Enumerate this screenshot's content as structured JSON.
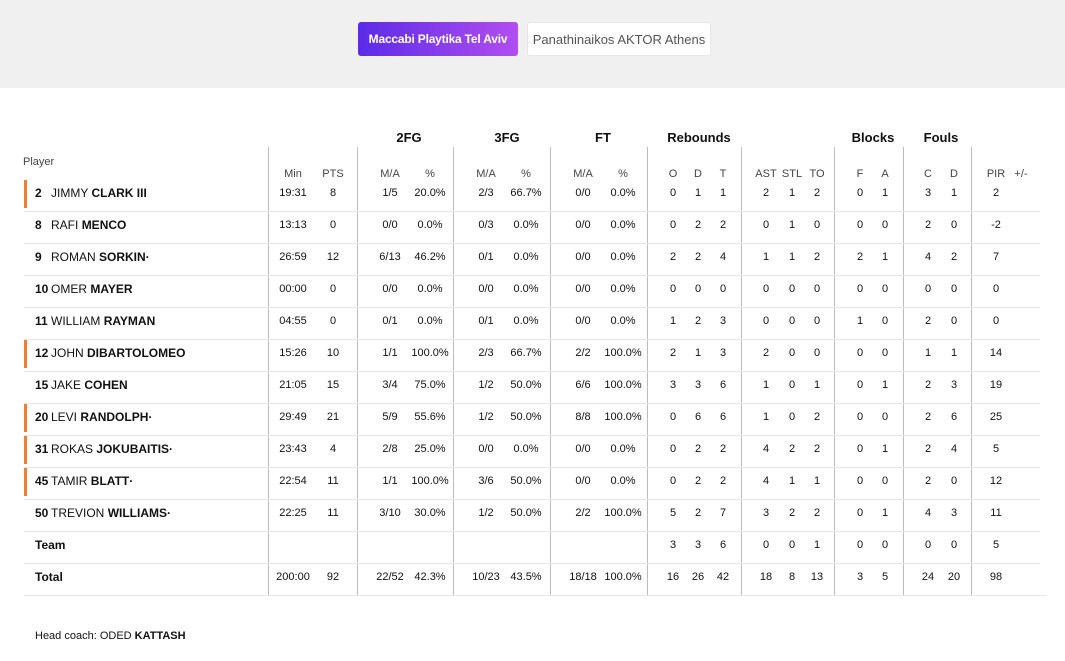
{
  "tabs": [
    {
      "label": "Maccabi Playtika Tel Aviv",
      "active": true
    },
    {
      "label": "Panathinaikos AKTOR Athens",
      "active": false
    }
  ],
  "group_headers": [
    "2FG",
    "3FG",
    "FT",
    "Rebounds",
    "Blocks",
    "Fouls"
  ],
  "column_headers": [
    "Min",
    "PTS",
    "M/A",
    "%",
    "M/A",
    "%",
    "M/A",
    "%",
    "O",
    "D",
    "T",
    "AST",
    "STL",
    "TO",
    "F",
    "A",
    "C",
    "D",
    "PIR",
    "+/-"
  ],
  "player_header": "Player",
  "accent_color": "#f47b38",
  "players": [
    {
      "num": "2",
      "first": "JIMMY",
      "last": "CLARK III",
      "starter": true,
      "stats": [
        "19:31",
        "8",
        "1/5",
        "20.0%",
        "2/3",
        "66.7%",
        "0/0",
        "0.0%",
        "0",
        "1",
        "1",
        "2",
        "1",
        "2",
        "0",
        "1",
        "3",
        "1",
        "2",
        ""
      ]
    },
    {
      "num": "8",
      "first": "RAFI",
      "last": "MENCO",
      "starter": false,
      "stats": [
        "13:13",
        "0",
        "0/0",
        "0.0%",
        "0/3",
        "0.0%",
        "0/0",
        "0.0%",
        "0",
        "2",
        "2",
        "0",
        "1",
        "0",
        "0",
        "0",
        "2",
        "0",
        "-2",
        ""
      ]
    },
    {
      "num": "9",
      "first": "ROMAN",
      "last": "SORKIN·",
      "starter": false,
      "stats": [
        "26:59",
        "12",
        "6/13",
        "46.2%",
        "0/1",
        "0.0%",
        "0/0",
        "0.0%",
        "2",
        "2",
        "4",
        "1",
        "1",
        "2",
        "2",
        "1",
        "4",
        "2",
        "7",
        ""
      ]
    },
    {
      "num": "10",
      "first": "OMER",
      "last": "MAYER",
      "starter": false,
      "stats": [
        "00:00",
        "0",
        "0/0",
        "0.0%",
        "0/0",
        "0.0%",
        "0/0",
        "0.0%",
        "0",
        "0",
        "0",
        "0",
        "0",
        "0",
        "0",
        "0",
        "0",
        "0",
        "0",
        ""
      ]
    },
    {
      "num": "11",
      "first": "WILLIAM",
      "last": "RAYMAN",
      "starter": false,
      "stats": [
        "04:55",
        "0",
        "0/1",
        "0.0%",
        "0/1",
        "0.0%",
        "0/0",
        "0.0%",
        "1",
        "2",
        "3",
        "0",
        "0",
        "0",
        "1",
        "0",
        "2",
        "0",
        "0",
        ""
      ]
    },
    {
      "num": "12",
      "first": "JOHN",
      "last": "DIBARTOLOMEO",
      "starter": true,
      "stats": [
        "15:26",
        "10",
        "1/1",
        "100.0%",
        "2/3",
        "66.7%",
        "2/2",
        "100.0%",
        "2",
        "1",
        "3",
        "2",
        "0",
        "0",
        "0",
        "0",
        "1",
        "1",
        "14",
        ""
      ]
    },
    {
      "num": "15",
      "first": "JAKE",
      "last": "COHEN",
      "starter": false,
      "stats": [
        "21:05",
        "15",
        "3/4",
        "75.0%",
        "1/2",
        "50.0%",
        "6/6",
        "100.0%",
        "3",
        "3",
        "6",
        "1",
        "0",
        "1",
        "0",
        "1",
        "2",
        "3",
        "19",
        ""
      ]
    },
    {
      "num": "20",
      "first": "LEVI",
      "last": "RANDOLPH·",
      "starter": true,
      "stats": [
        "29:49",
        "21",
        "5/9",
        "55.6%",
        "1/2",
        "50.0%",
        "8/8",
        "100.0%",
        "0",
        "6",
        "6",
        "1",
        "0",
        "2",
        "0",
        "0",
        "2",
        "6",
        "25",
        ""
      ]
    },
    {
      "num": "31",
      "first": "ROKAS",
      "last": "JOKUBAITIS·",
      "starter": true,
      "stats": [
        "23:43",
        "4",
        "2/8",
        "25.0%",
        "0/0",
        "0.0%",
        "0/0",
        "0.0%",
        "0",
        "2",
        "2",
        "4",
        "2",
        "2",
        "0",
        "1",
        "2",
        "4",
        "5",
        ""
      ]
    },
    {
      "num": "45",
      "first": "TAMIR",
      "last": "BLATT·",
      "starter": true,
      "stats": [
        "22:54",
        "11",
        "1/1",
        "100.0%",
        "3/6",
        "50.0%",
        "0/0",
        "0.0%",
        "0",
        "2",
        "2",
        "4",
        "1",
        "1",
        "0",
        "0",
        "2",
        "0",
        "12",
        ""
      ]
    },
    {
      "num": "50",
      "first": "TREVION",
      "last": "WILLIAMS·",
      "starter": false,
      "stats": [
        "22:25",
        "11",
        "3/10",
        "30.0%",
        "1/2",
        "50.0%",
        "2/2",
        "100.0%",
        "5",
        "2",
        "7",
        "3",
        "2",
        "2",
        "0",
        "1",
        "4",
        "3",
        "11",
        ""
      ]
    }
  ],
  "team_row": {
    "label": "Team",
    "stats": [
      "",
      "",
      "",
      "",
      "",
      "",
      "",
      "",
      "3",
      "3",
      "6",
      "0",
      "0",
      "1",
      "0",
      "0",
      "0",
      "0",
      "5",
      ""
    ]
  },
  "total_row": {
    "label": "Total",
    "stats": [
      "200:00",
      "92",
      "22/52",
      "42.3%",
      "10/23",
      "43.5%",
      "18/18",
      "100.0%",
      "16",
      "26",
      "42",
      "18",
      "8",
      "13",
      "3",
      "5",
      "24",
      "20",
      "98",
      ""
    ]
  },
  "coach": {
    "prefix": "Head coach:",
    "first": "ODED",
    "last": "KATTASH"
  }
}
